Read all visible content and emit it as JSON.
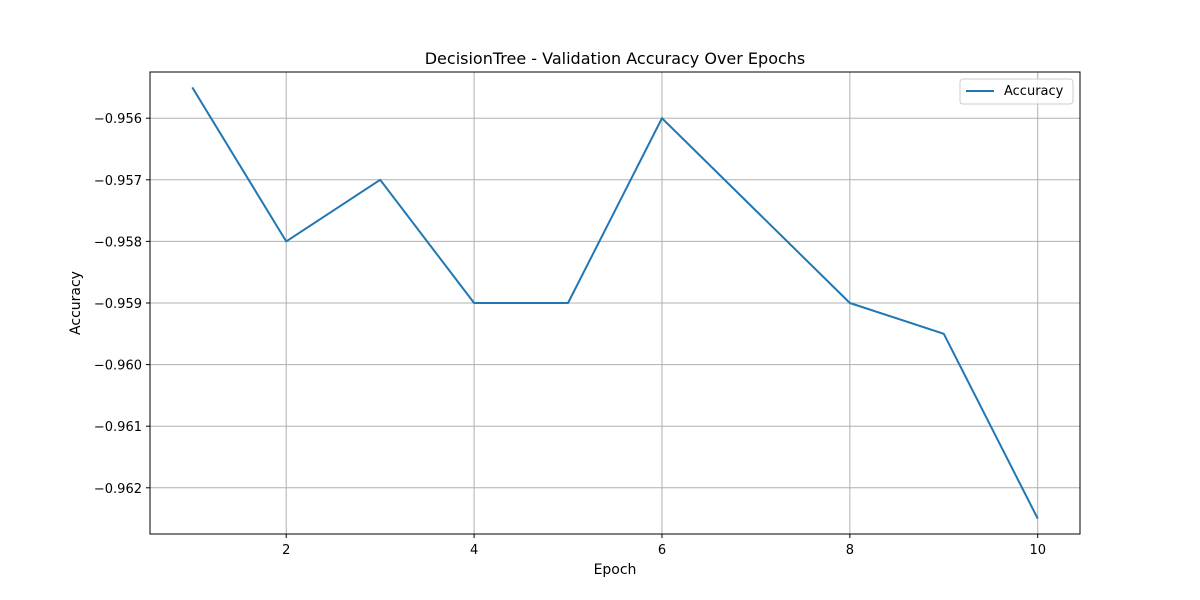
{
  "chart_data": {
    "type": "line",
    "title": "DecisionTree - Validation Accuracy Over Epochs",
    "xlabel": "Epoch",
    "ylabel": "Accuracy",
    "x": [
      1,
      2,
      3,
      4,
      5,
      6,
      7,
      8,
      9,
      10
    ],
    "series": [
      {
        "name": "Accuracy",
        "color": "#1f77b4",
        "values": [
          -0.9555,
          -0.958,
          -0.957,
          -0.959,
          -0.959,
          -0.956,
          -0.9575,
          -0.959,
          -0.9595,
          -0.9625
        ]
      }
    ],
    "xlim": [
      0.55,
      10.45
    ],
    "ylim": [
      -0.96275,
      -0.95525
    ],
    "xticks": [
      2,
      4,
      6,
      8,
      10
    ],
    "xtick_labels": [
      "2",
      "4",
      "6",
      "8",
      "10"
    ],
    "yticks": [
      -0.956,
      -0.957,
      -0.958,
      -0.959,
      -0.96,
      -0.961,
      -0.962
    ],
    "ytick_labels": [
      "−0.956",
      "−0.957",
      "−0.958",
      "−0.959",
      "−0.960",
      "−0.961",
      "−0.962"
    ],
    "grid": true,
    "legend_position": "top-right"
  }
}
